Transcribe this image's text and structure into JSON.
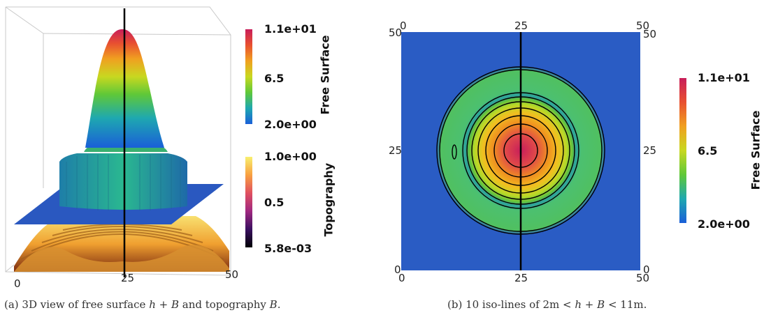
{
  "left_panel": {
    "axis_ticks": [
      "0",
      "25",
      "50"
    ],
    "colorbar_free_surface": {
      "title": "Free Surface",
      "max": "1.1e+01",
      "mid": "6.5",
      "min": "2.0e+00"
    },
    "colorbar_topography": {
      "title": "Topography",
      "max": "1.0e+00",
      "mid": "0.5",
      "min": "5.8e-03"
    },
    "caption": {
      "prefix": "(a) 3D view of free surface",
      "math1": "h + B",
      "middle": "and topography",
      "math2": "B",
      "suffix": "."
    }
  },
  "right_panel": {
    "axis_ticks": [
      "0",
      "25",
      "50"
    ],
    "colorbar": {
      "title": "Free Surface",
      "max": "1.1e+01",
      "mid": "6.5",
      "min": "2.0e+00"
    },
    "caption": {
      "prefix": "(b) 10 iso-lines of 2m <",
      "math": "h + B",
      "suffix": "< 11m."
    }
  },
  "colors": {
    "background_blue": "#2a5cc4",
    "line_black": "#000000"
  }
}
